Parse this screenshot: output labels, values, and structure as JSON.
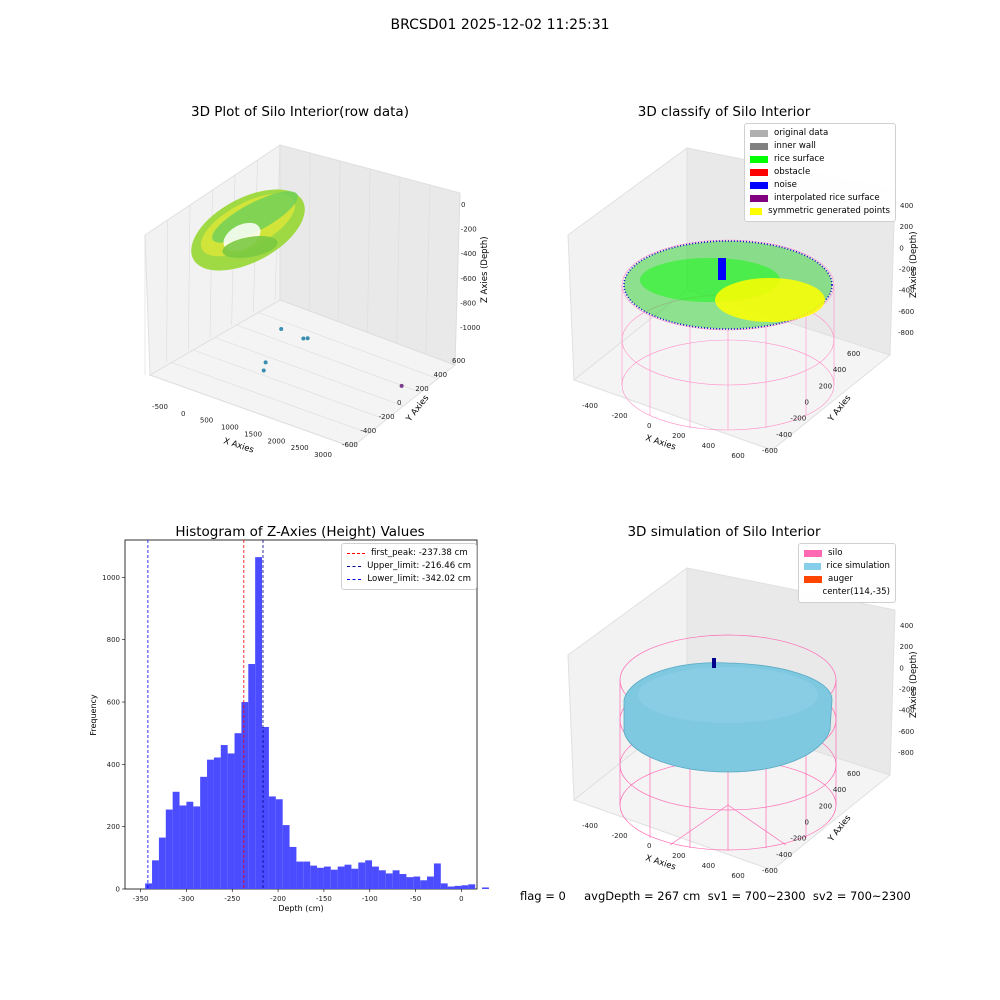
{
  "figure": {
    "suptitle": "BRCSD01 2025-12-02 11:25:31",
    "footer": "flag = 0     avgDepth = 267 cm  sv1 = 700~2300  sv2 = 700~2300"
  },
  "chart_data": [
    {
      "type": "scatter",
      "title": "3D Plot of Silo Interior(row data)",
      "xlabel": "X Axies",
      "ylabel": "Y Axies",
      "zlabel": "Z Axies (Depth)",
      "xticks": [
        "-500",
        "0",
        "500",
        "1000",
        "1500",
        "2000",
        "2500",
        "3000"
      ],
      "yticks": [
        "600",
        "400",
        "200",
        "0",
        "-200",
        "-400",
        "-600"
      ],
      "zticks": [
        "0",
        "-200",
        "-400",
        "-600",
        "-800",
        "-1000"
      ],
      "xlim": [
        -600,
        3200
      ],
      "ylim": [
        -650,
        650
      ],
      "zlim": [
        -1050,
        50
      ],
      "colormap": "viridis",
      "surface_note": "dense ring of points at depth ~ -200 to -350 centered near x 0..400",
      "outliers": [
        {
          "x": 1100,
          "y": -200,
          "z": -800
        },
        {
          "x": 1450,
          "y": -150,
          "z": -830
        },
        {
          "x": 1500,
          "y": -130,
          "z": -830
        },
        {
          "x": 1150,
          "y": -400,
          "z": -900
        },
        {
          "x": 1200,
          "y": -450,
          "z": -920
        },
        {
          "x": 3000,
          "y": 100,
          "z": -1000
        }
      ]
    },
    {
      "type": "scatter",
      "title": "3D classify of Silo Interior",
      "xlabel": "X Axies",
      "ylabel": "Y Axies",
      "zlabel": "Z Axies (Depth)",
      "xticks": [
        "-400",
        "-200",
        "0",
        "200",
        "400",
        "600"
      ],
      "yticks": [
        "600",
        "400",
        "200",
        "0",
        "-200",
        "-400",
        "-600"
      ],
      "zticks": [
        "400",
        "200",
        "0",
        "-200",
        "-400",
        "-600",
        "-800"
      ],
      "legend": [
        {
          "label": "original data",
          "color": "#b0b0b0"
        },
        {
          "label": "inner wall",
          "color": "#808080"
        },
        {
          "label": "rice surface",
          "color": "#00ff00"
        },
        {
          "label": "obstacle",
          "color": "#ff0000"
        },
        {
          "label": "noise",
          "color": "#0000ff"
        },
        {
          "label": "interpolated rice surface",
          "color": "#800080"
        },
        {
          "label": "symmetric generated points",
          "color": "#ffff00"
        }
      ],
      "legend_position": "top-right"
    },
    {
      "type": "bar",
      "title": "Histogram of Z-Axies (Height) Values",
      "xlabel": "Depth (cm)",
      "ylabel": "Frequency",
      "xlim": [
        -367,
        17
      ],
      "ylim": [
        0,
        1120
      ],
      "xticks": [
        -350,
        -300,
        -250,
        -200,
        -150,
        -100,
        -50,
        0
      ],
      "yticks": [
        0,
        200,
        400,
        600,
        800,
        1000
      ],
      "bar_color": "#4b4bff",
      "bin_width": 7.5,
      "bin_start": -345,
      "values": [
        18,
        92,
        165,
        255,
        312,
        268,
        280,
        265,
        360,
        415,
        422,
        462,
        435,
        500,
        600,
        722,
        1065,
        520,
        297,
        288,
        205,
        135,
        88,
        88,
        75,
        68,
        72,
        62,
        72,
        78,
        65,
        85,
        92,
        72,
        60,
        50,
        60,
        48,
        38,
        40,
        28,
        40,
        82,
        18,
        8,
        10,
        12,
        15,
        0,
        5
      ],
      "vlines": [
        {
          "label": "first_peak: -237.38 cm",
          "x": -237.38,
          "color": "#ff0000"
        },
        {
          "label": "Upper_limit: -216.46 cm",
          "x": -216.46,
          "color": "#00008b"
        },
        {
          "label": "Lower_limit: -342.02 cm",
          "x": -342.02,
          "color": "#0000ff"
        }
      ],
      "legend_position": "top-right"
    },
    {
      "type": "scatter",
      "title": "3D simulation of Silo Interior",
      "xlabel": "X Axies",
      "ylabel": "Y Axies",
      "zlabel": "Z Axies (Depth)",
      "xticks": [
        "-400",
        "-200",
        "0",
        "200",
        "400",
        "600"
      ],
      "yticks": [
        "600",
        "400",
        "200",
        "0",
        "-200",
        "-400",
        "-600"
      ],
      "zticks": [
        "400",
        "200",
        "0",
        "-200",
        "-400",
        "-600",
        "-800"
      ],
      "legend": [
        {
          "label": "silo",
          "color": "#ff69b4"
        },
        {
          "label": "rice simulation",
          "color": "#87ceeb"
        },
        {
          "label": "auger",
          "color": "#ff4500"
        },
        {
          "label": "center(114,-35)",
          "color": ""
        }
      ],
      "legend_position": "top-right"
    }
  ]
}
